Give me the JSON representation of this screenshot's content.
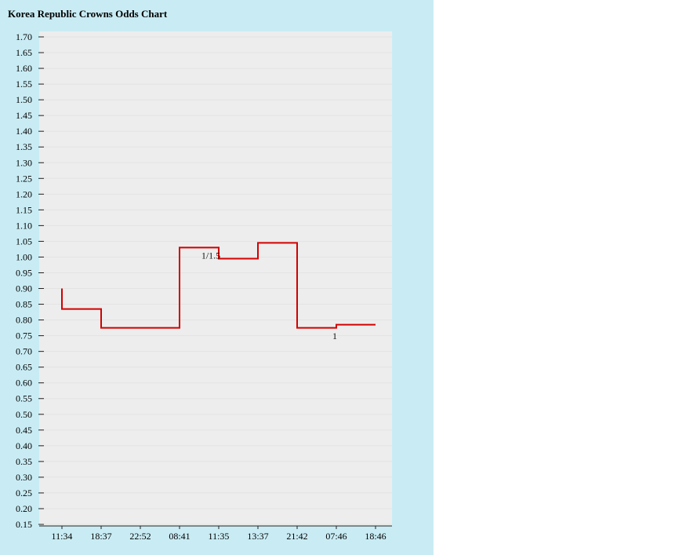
{
  "page": {
    "panel_color": "#c9ecf4",
    "outside_color": "#ffffff"
  },
  "header": {
    "title": "Korea Republic Crowns Odds Chart"
  },
  "chart_data": {
    "type": "line",
    "step": true,
    "title": "Korea Republic Crowns Odds Chart",
    "x_labels": [
      "11:34",
      "18:37",
      "22:52",
      "08:41",
      "11:35",
      "13:37",
      "21:42",
      "07:46",
      "18:46"
    ],
    "y_ticks": [
      "1.70",
      "1.65",
      "1.60",
      "1.55",
      "1.50",
      "1.45",
      "1.40",
      "1.35",
      "1.30",
      "1.25",
      "1.20",
      "1.15",
      "1.10",
      "1.05",
      "1.00",
      "0.95",
      "0.90",
      "0.85",
      "0.80",
      "0.75",
      "0.70",
      "0.65",
      "0.60",
      "0.55",
      "0.50",
      "0.45",
      "0.40",
      "0.35",
      "0.30",
      "0.25",
      "0.20",
      "0.15"
    ],
    "ylim": [
      0.15,
      1.7
    ],
    "ytick_step": 0.05,
    "grid": true,
    "plot_bg": "#ededed",
    "grid_color": "#e3e3e3",
    "axis_color": "#222222",
    "line_color": "#d10000",
    "series": [
      {
        "name": "Korea Republic Crowns odds",
        "points": [
          [
            0,
            0.9
          ],
          [
            0,
            0.835
          ],
          [
            1,
            0.835
          ],
          [
            1,
            0.775
          ],
          [
            3,
            0.775
          ],
          [
            3,
            1.03
          ],
          [
            4,
            1.03
          ],
          [
            4,
            0.995
          ],
          [
            5,
            0.995
          ],
          [
            5,
            1.045
          ],
          [
            6,
            1.045
          ],
          [
            6,
            0.775
          ],
          [
            7,
            0.775
          ],
          [
            7,
            0.785
          ],
          [
            8,
            0.785
          ]
        ]
      }
    ],
    "annotations": [
      {
        "text": "1/1.5",
        "x": 3.8,
        "y": 1.005
      },
      {
        "text": "1",
        "x": 6.96,
        "y": 0.749
      }
    ]
  }
}
